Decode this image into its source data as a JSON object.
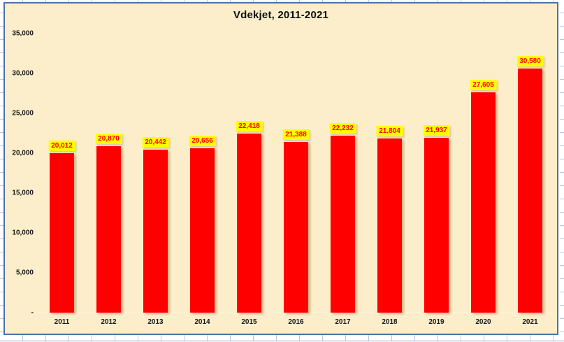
{
  "chart_data": {
    "type": "bar",
    "title": "Vdekjet, 2011-2021",
    "categories": [
      "2011",
      "2012",
      "2013",
      "2014",
      "2015",
      "2016",
      "2017",
      "2018",
      "2019",
      "2020",
      "2021"
    ],
    "values": [
      20012,
      20870,
      20442,
      20656,
      22418,
      21388,
      22232,
      21804,
      21937,
      27605,
      30580
    ],
    "value_labels": [
      "20,012",
      "20,870",
      "20,442",
      "20,656",
      "22,418",
      "21,388",
      "22,232",
      "21,804",
      "21,937",
      "27,605",
      "30,580"
    ],
    "y_ticks": [
      {
        "v": 35000,
        "label": "35,000"
      },
      {
        "v": 30000,
        "label": "30,000"
      },
      {
        "v": 25000,
        "label": "25,000"
      },
      {
        "v": 20000,
        "label": "20,000"
      },
      {
        "v": 15000,
        "label": "15,000"
      },
      {
        "v": 10000,
        "label": "10,000"
      },
      {
        "v": 5000,
        "label": "5,000"
      },
      {
        "v": 0,
        "label": "-"
      }
    ],
    "ylim": [
      0,
      35000
    ],
    "xlabel": "",
    "ylabel": "",
    "grid": false,
    "legend": "none",
    "colors": {
      "bar": "#FF0000",
      "label_bg": "#FFFF00",
      "label_text": "#FF0000",
      "plot_bg": "#FCEECB",
      "chart_border": "#4A71AD",
      "axis_line": "#FFF7E0",
      "sheet_tick": "#B9C7DE",
      "sheet_row_line": "#96AFD0"
    }
  }
}
